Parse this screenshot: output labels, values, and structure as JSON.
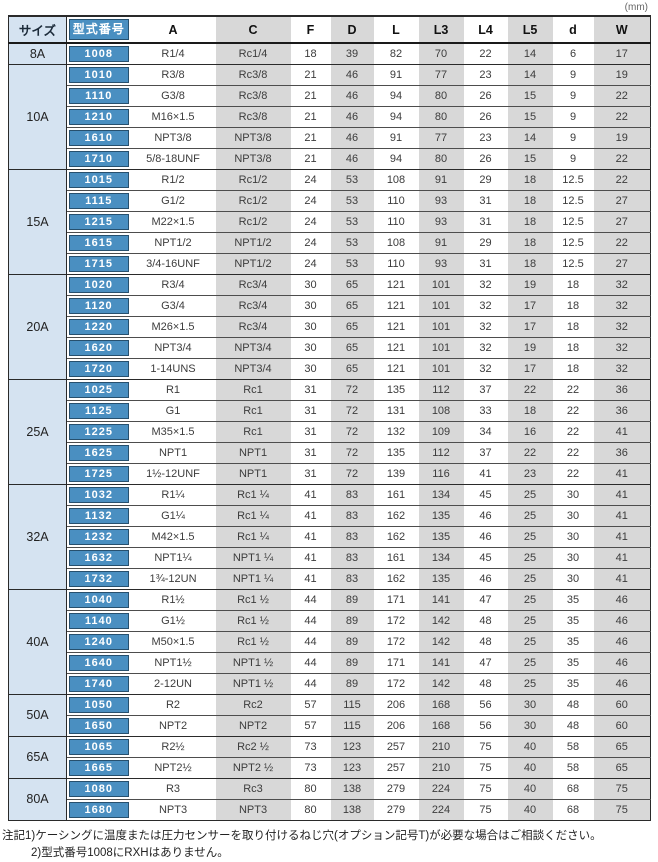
{
  "meta": {
    "unit_label": "(mm)"
  },
  "colors": {
    "model_blue": "#4a8fc1",
    "model_border": "#27506e",
    "size_blue": "#d5e3f1",
    "col_gray": "#d8d8d8",
    "border_dark": "#2a2a2a"
  },
  "table": {
    "headers": {
      "size": "サイズ",
      "model": "型式番号",
      "cols": [
        "A",
        "C",
        "F",
        "D",
        "L",
        "L3",
        "L4",
        "L5",
        "d",
        "W"
      ]
    },
    "groups": [
      {
        "size": "8A",
        "rows": [
          {
            "model": "1008",
            "values": [
              "R1/4",
              "Rc1/4",
              "18",
              "39",
              "82",
              "70",
              "22",
              "14",
              "6",
              "17"
            ]
          }
        ]
      },
      {
        "size": "10A",
        "rows": [
          {
            "model": "1010",
            "values": [
              "R3/8",
              "Rc3/8",
              "21",
              "46",
              "91",
              "77",
              "23",
              "14",
              "9",
              "19"
            ]
          },
          {
            "model": "1110",
            "values": [
              "G3/8",
              "Rc3/8",
              "21",
              "46",
              "94",
              "80",
              "26",
              "15",
              "9",
              "22"
            ]
          },
          {
            "model": "1210",
            "values": [
              "M16×1.5",
              "Rc3/8",
              "21",
              "46",
              "94",
              "80",
              "26",
              "15",
              "9",
              "22"
            ]
          },
          {
            "model": "1610",
            "values": [
              "NPT3/8",
              "NPT3/8",
              "21",
              "46",
              "91",
              "77",
              "23",
              "14",
              "9",
              "19"
            ]
          },
          {
            "model": "1710",
            "values": [
              "5/8-18UNF",
              "NPT3/8",
              "21",
              "46",
              "94",
              "80",
              "26",
              "15",
              "9",
              "22"
            ]
          }
        ]
      },
      {
        "size": "15A",
        "rows": [
          {
            "model": "1015",
            "values": [
              "R1/2",
              "Rc1/2",
              "24",
              "53",
              "108",
              "91",
              "29",
              "18",
              "12.5",
              "22"
            ]
          },
          {
            "model": "1115",
            "values": [
              "G1/2",
              "Rc1/2",
              "24",
              "53",
              "110",
              "93",
              "31",
              "18",
              "12.5",
              "27"
            ]
          },
          {
            "model": "1215",
            "values": [
              "M22×1.5",
              "Rc1/2",
              "24",
              "53",
              "110",
              "93",
              "31",
              "18",
              "12.5",
              "27"
            ]
          },
          {
            "model": "1615",
            "values": [
              "NPT1/2",
              "NPT1/2",
              "24",
              "53",
              "108",
              "91",
              "29",
              "18",
              "12.5",
              "22"
            ]
          },
          {
            "model": "1715",
            "values": [
              "3/4-16UNF",
              "NPT1/2",
              "24",
              "53",
              "110",
              "93",
              "31",
              "18",
              "12.5",
              "27"
            ]
          }
        ]
      },
      {
        "size": "20A",
        "rows": [
          {
            "model": "1020",
            "values": [
              "R3/4",
              "Rc3/4",
              "30",
              "65",
              "121",
              "101",
              "32",
              "19",
              "18",
              "32"
            ]
          },
          {
            "model": "1120",
            "values": [
              "G3/4",
              "Rc3/4",
              "30",
              "65",
              "121",
              "101",
              "32",
              "17",
              "18",
              "32"
            ]
          },
          {
            "model": "1220",
            "values": [
              "M26×1.5",
              "Rc3/4",
              "30",
              "65",
              "121",
              "101",
              "32",
              "17",
              "18",
              "32"
            ]
          },
          {
            "model": "1620",
            "values": [
              "NPT3/4",
              "NPT3/4",
              "30",
              "65",
              "121",
              "101",
              "32",
              "19",
              "18",
              "32"
            ]
          },
          {
            "model": "1720",
            "values": [
              "1-14UNS",
              "NPT3/4",
              "30",
              "65",
              "121",
              "101",
              "32",
              "17",
              "18",
              "32"
            ]
          }
        ]
      },
      {
        "size": "25A",
        "rows": [
          {
            "model": "1025",
            "values": [
              "R1",
              "Rc1",
              "31",
              "72",
              "135",
              "112",
              "37",
              "22",
              "22",
              "36"
            ]
          },
          {
            "model": "1125",
            "values": [
              "G1",
              "Rc1",
              "31",
              "72",
              "131",
              "108",
              "33",
              "18",
              "22",
              "36"
            ]
          },
          {
            "model": "1225",
            "values": [
              "M35×1.5",
              "Rc1",
              "31",
              "72",
              "132",
              "109",
              "34",
              "16",
              "22",
              "41"
            ]
          },
          {
            "model": "1625",
            "values": [
              "NPT1",
              "NPT1",
              "31",
              "72",
              "135",
              "112",
              "37",
              "22",
              "22",
              "36"
            ]
          },
          {
            "model": "1725",
            "values": [
              "1½-12UNF",
              "NPT1",
              "31",
              "72",
              "139",
              "116",
              "41",
              "23",
              "22",
              "41"
            ]
          }
        ]
      },
      {
        "size": "32A",
        "rows": [
          {
            "model": "1032",
            "values": [
              "R1¼",
              "Rc1 ¼",
              "41",
              "83",
              "161",
              "134",
              "45",
              "25",
              "30",
              "41"
            ]
          },
          {
            "model": "1132",
            "values": [
              "G1¼",
              "Rc1 ¼",
              "41",
              "83",
              "162",
              "135",
              "46",
              "25",
              "30",
              "41"
            ]
          },
          {
            "model": "1232",
            "values": [
              "M42×1.5",
              "Rc1 ¼",
              "41",
              "83",
              "162",
              "135",
              "46",
              "25",
              "30",
              "41"
            ]
          },
          {
            "model": "1632",
            "values": [
              "NPT1¼",
              "NPT1 ¼",
              "41",
              "83",
              "161",
              "134",
              "45",
              "25",
              "30",
              "41"
            ]
          },
          {
            "model": "1732",
            "values": [
              "1¾-12UN",
              "NPT1 ¼",
              "41",
              "83",
              "162",
              "135",
              "46",
              "25",
              "30",
              "41"
            ]
          }
        ]
      },
      {
        "size": "40A",
        "rows": [
          {
            "model": "1040",
            "values": [
              "R1½",
              "Rc1 ½",
              "44",
              "89",
              "171",
              "141",
              "47",
              "25",
              "35",
              "46"
            ]
          },
          {
            "model": "1140",
            "values": [
              "G1½",
              "Rc1 ½",
              "44",
              "89",
              "172",
              "142",
              "48",
              "25",
              "35",
              "46"
            ]
          },
          {
            "model": "1240",
            "values": [
              "M50×1.5",
              "Rc1 ½",
              "44",
              "89",
              "172",
              "142",
              "48",
              "25",
              "35",
              "46"
            ]
          },
          {
            "model": "1640",
            "values": [
              "NPT1½",
              "NPT1 ½",
              "44",
              "89",
              "171",
              "141",
              "47",
              "25",
              "35",
              "46"
            ]
          },
          {
            "model": "1740",
            "values": [
              "2-12UN",
              "NPT1 ½",
              "44",
              "89",
              "172",
              "142",
              "48",
              "25",
              "35",
              "46"
            ]
          }
        ]
      },
      {
        "size": "50A",
        "rows": [
          {
            "model": "1050",
            "values": [
              "R2",
              "Rc2",
              "57",
              "115",
              "206",
              "168",
              "56",
              "30",
              "48",
              "60"
            ]
          },
          {
            "model": "1650",
            "values": [
              "NPT2",
              "NPT2",
              "57",
              "115",
              "206",
              "168",
              "56",
              "30",
              "48",
              "60"
            ]
          }
        ]
      },
      {
        "size": "65A",
        "rows": [
          {
            "model": "1065",
            "values": [
              "R2½",
              "Rc2 ½",
              "73",
              "123",
              "257",
              "210",
              "75",
              "40",
              "58",
              "65"
            ]
          },
          {
            "model": "1665",
            "values": [
              "NPT2½",
              "NPT2 ½",
              "73",
              "123",
              "257",
              "210",
              "75",
              "40",
              "58",
              "65"
            ]
          }
        ]
      },
      {
        "size": "80A",
        "rows": [
          {
            "model": "1080",
            "values": [
              "R3",
              "Rc3",
              "80",
              "138",
              "279",
              "224",
              "75",
              "40",
              "68",
              "75"
            ]
          },
          {
            "model": "1680",
            "values": [
              "NPT3",
              "NPT3",
              "80",
              "138",
              "279",
              "224",
              "75",
              "40",
              "68",
              "75"
            ]
          }
        ]
      }
    ]
  },
  "notes": [
    "注記1)ケーシングに温度または圧力センサーを取り付けるねじ穴(オプション記号T)が必要な場合はご相談ください。",
    "2)型式番号1008にRXHはありません。"
  ]
}
